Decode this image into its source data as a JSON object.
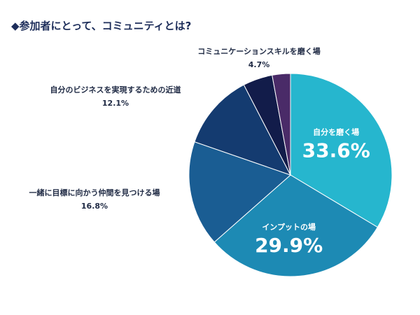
{
  "title": "◆参加者にとって、コミュニティとは?",
  "chart_data": {
    "type": "pie",
    "start_angle_deg": 0,
    "direction": "clockwise",
    "slices": [
      {
        "label": "自分を磨く場",
        "value": 33.6,
        "value_text": "33.6%",
        "color": "#26b6ce",
        "label_position": "inside"
      },
      {
        "label": "インプットの場",
        "value": 29.9,
        "value_text": "29.9%",
        "color": "#1d8ab4",
        "label_position": "inside"
      },
      {
        "label": "一緒に目標に向かう仲間を見つける場",
        "value": 16.8,
        "value_text": "16.8%",
        "color": "#1a5d93",
        "label_position": "outside-left"
      },
      {
        "label": "自分のビジネスを実現するための近道",
        "value": 12.1,
        "value_text": "12.1%",
        "color": "#143b70",
        "label_position": "outside-left"
      },
      {
        "label": "コミュニケーションスキルを磨く場",
        "value": 4.7,
        "value_text": "4.7%",
        "color": "#121c4a",
        "label_position": "outside-top"
      },
      {
        "label": "",
        "value": 2.9,
        "value_text": "",
        "color": "#4a2b68",
        "label_position": "none"
      }
    ]
  }
}
